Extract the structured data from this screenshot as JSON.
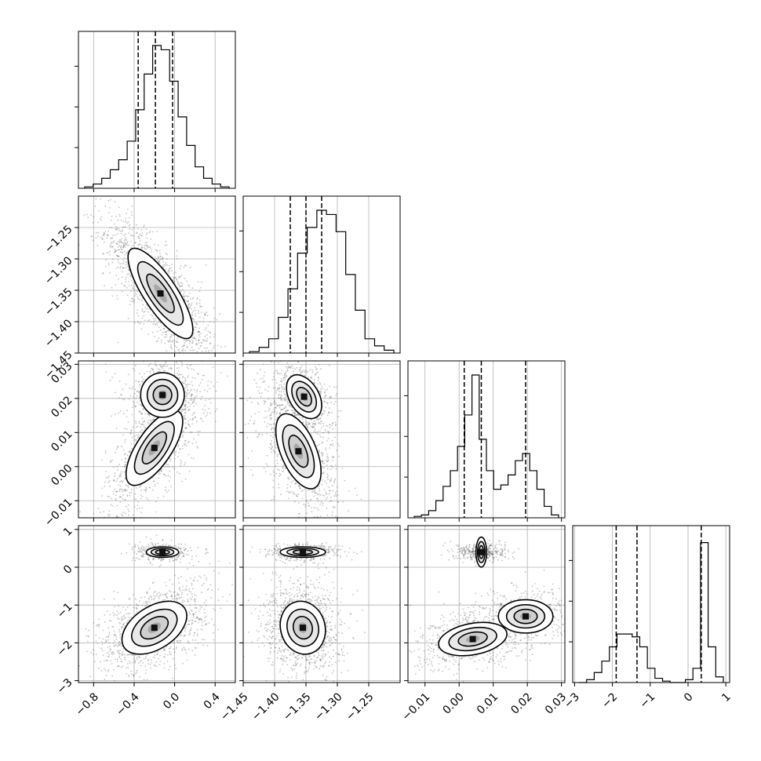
{
  "chart_data": {
    "type": "scatter",
    "title": "",
    "variant": "corner-plot",
    "parameters": 4,
    "grid": true,
    "quantile_lines": "dashed",
    "colors": {
      "ink": "#000000",
      "grid": "#b0b0b0",
      "points": "#555555"
    },
    "axes": [
      {
        "range": [
          -0.95,
          0.6
        ],
        "ticks": [
          -0.8,
          -0.4,
          0.0,
          0.4
        ],
        "tick_labels": [
          "−0.8",
          "−0.4",
          "0.0",
          "0.4"
        ],
        "quantiles": [
          -0.36,
          -0.19,
          -0.02
        ]
      },
      {
        "range": [
          -1.45,
          -1.2
        ],
        "ticks": [
          -1.45,
          -1.4,
          -1.35,
          -1.3,
          -1.25
        ],
        "tick_labels": [
          "−1.45",
          "−1.40",
          "−1.35",
          "−1.30",
          "−1.25"
        ],
        "quantiles": [
          -1.375,
          -1.35,
          -1.325
        ]
      },
      {
        "range": [
          -0.015,
          0.031
        ],
        "ticks": [
          -0.01,
          0.0,
          0.01,
          0.02,
          0.03
        ],
        "tick_labels": [
          "−0.01",
          "0.00",
          "0.01",
          "0.02",
          "0.03"
        ],
        "quantiles": [
          0.0015,
          0.0065,
          0.0195
        ]
      },
      {
        "range": [
          -3.05,
          1.1
        ],
        "ticks": [
          -3,
          -2,
          -1,
          0,
          1
        ],
        "tick_labels": [
          "−3",
          "−2",
          "−1",
          "0",
          "1"
        ],
        "quantiles": [
          -1.9,
          -1.35,
          0.35
        ]
      }
    ],
    "histograms": [
      {
        "param": 0,
        "peak": 1.0,
        "values": [
          0.01,
          0.03,
          0.07,
          0.13,
          0.2,
          0.33,
          0.55,
          0.8,
          1.0,
          0.97,
          0.75,
          0.5,
          0.3,
          0.15,
          0.07,
          0.03,
          0.01
        ]
      },
      {
        "param": 1,
        "peak": 1.0,
        "values": [
          0.01,
          0.04,
          0.1,
          0.25,
          0.45,
          0.7,
          0.88,
          1.0,
          0.97,
          0.85,
          0.55,
          0.3,
          0.1,
          0.05,
          0.02
        ]
      },
      {
        "param": 2,
        "peak": 1.0,
        "values": [
          0.01,
          0.02,
          0.05,
          0.12,
          0.22,
          0.33,
          0.5,
          0.72,
          1.0,
          0.55,
          0.33,
          0.2,
          0.23,
          0.3,
          0.4,
          0.45,
          0.33,
          0.2,
          0.08,
          0.02
        ]
      },
      {
        "param": 3,
        "peak": 1.0,
        "values": [
          0.0,
          0.02,
          0.07,
          0.15,
          0.25,
          0.34,
          0.34,
          0.32,
          0.25,
          0.1,
          0.03,
          0.01,
          0.0,
          0.0,
          0.02,
          0.1,
          0.98,
          0.25,
          0.04
        ]
      }
    ],
    "pair_panels": [
      {
        "x": 0,
        "y": 1,
        "modes": [
          {
            "cx": -0.14,
            "cy": -1.355,
            "sx": 0.16,
            "sy": 0.036,
            "rho": -0.8,
            "w": 1.0
          }
        ]
      },
      {
        "x": 0,
        "y": 2,
        "modes": [
          {
            "cx": -0.2,
            "cy": 0.0055,
            "sx": 0.14,
            "sy": 0.0055,
            "rho": 0.7,
            "w": 0.62
          },
          {
            "cx": -0.12,
            "cy": 0.021,
            "sx": 0.11,
            "sy": 0.0032,
            "rho": 0.0,
            "w": 0.38
          }
        ]
      },
      {
        "x": 1,
        "y": 2,
        "modes": [
          {
            "cx": -1.362,
            "cy": 0.0045,
            "sx": 0.018,
            "sy": 0.0055,
            "rho": -0.55,
            "w": 0.62
          },
          {
            "cx": -1.353,
            "cy": 0.0205,
            "sx": 0.014,
            "sy": 0.0032,
            "rho": -0.4,
            "w": 0.38
          }
        ]
      },
      {
        "x": 0,
        "y": 3,
        "modes": [
          {
            "cx": -0.2,
            "cy": -1.6,
            "sx": 0.16,
            "sy": 0.35,
            "rho": 0.45,
            "w": 0.75
          },
          {
            "cx": -0.12,
            "cy": 0.4,
            "sx": 0.08,
            "sy": 0.07,
            "rho": 0.0,
            "w": 0.25
          }
        ]
      },
      {
        "x": 1,
        "y": 3,
        "modes": [
          {
            "cx": -1.355,
            "cy": -1.6,
            "sx": 0.018,
            "sy": 0.35,
            "rho": -0.1,
            "w": 0.75
          },
          {
            "cx": -1.355,
            "cy": 0.4,
            "sx": 0.018,
            "sy": 0.07,
            "rho": 0.0,
            "w": 0.25
          }
        ]
      },
      {
        "x": 2,
        "y": 3,
        "modes": [
          {
            "cx": 0.004,
            "cy": -1.9,
            "sx": 0.005,
            "sy": 0.22,
            "rho": 0.3,
            "w": 0.45
          },
          {
            "cx": 0.0195,
            "cy": -1.3,
            "sx": 0.004,
            "sy": 0.22,
            "rho": 0.0,
            "w": 0.3
          },
          {
            "cx": 0.0065,
            "cy": 0.4,
            "sx": 0.0022,
            "sy": 0.07,
            "rho": 0.0,
            "w": 0.25
          }
        ]
      }
    ]
  }
}
